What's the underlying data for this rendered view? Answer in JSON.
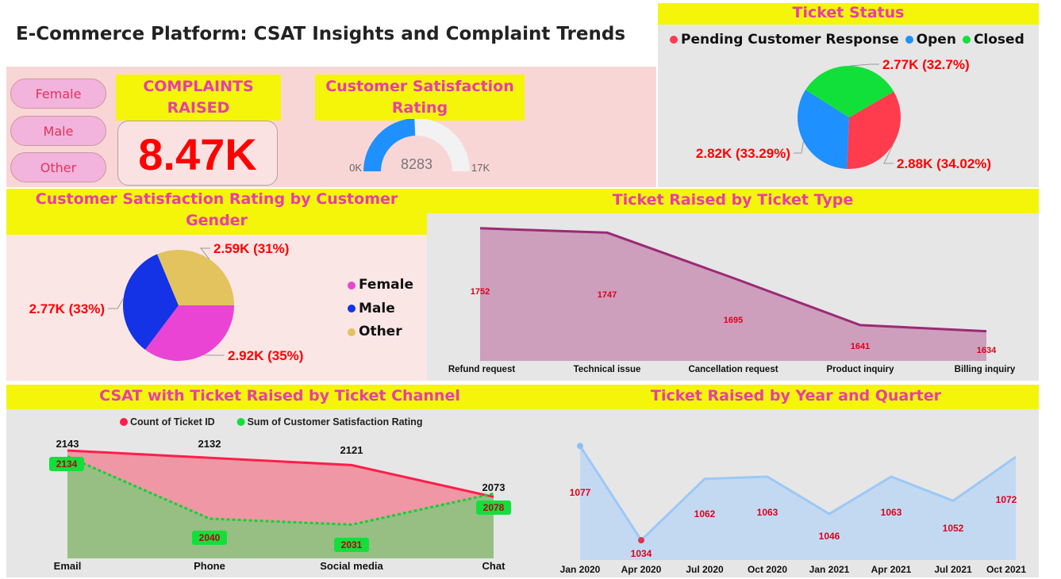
{
  "header": {
    "title": "E-Commerce Platform: CSAT Insights and Complaint Trends"
  },
  "colors": {
    "accent_yellow": "#f5f50a",
    "title_pink": "#e83ea8",
    "value_red": "#ff0000",
    "panel_pink": "#f9d6d6",
    "panel_grey": "#e6e6e6"
  },
  "slicer": {
    "items": [
      "Female",
      "Male",
      "Other"
    ]
  },
  "kpi": {
    "label": "COMPLAINTS RAISED",
    "value": "8.47K"
  },
  "gauge": {
    "title": "Customer Satisfaction Rating",
    "value": 8283,
    "value_label": "8283",
    "min_label": "0K",
    "max_label": "17K"
  },
  "ticket_status": {
    "title": "Ticket Status",
    "legend": [
      {
        "label": "Pending Customer Response",
        "color": "#ff3b4e"
      },
      {
        "label": "Open",
        "color": "#1e90ff"
      },
      {
        "label": "Closed",
        "color": "#12e03a"
      }
    ]
  },
  "gender": {
    "title": "Customer Satisfaction Rating by Customer Gender",
    "legend": [
      {
        "label": "Female",
        "color": "#ea44d4"
      },
      {
        "label": "Male",
        "color": "#1432e6"
      },
      {
        "label": "Other",
        "color": "#e2c35e"
      }
    ]
  },
  "ticket_type": {
    "title": "Ticket Raised by Ticket Type"
  },
  "channel": {
    "title": "CSAT with Ticket Raised by Ticket Channel",
    "legend": [
      {
        "label": "Count of Ticket ID",
        "color": "#ff1e4a"
      },
      {
        "label": "Sum of Customer Satisfaction Rating",
        "color": "#12e03a"
      }
    ]
  },
  "quarter": {
    "title": "Ticket Raised by Year and Quarter"
  },
  "chart_data": [
    {
      "id": "ticket_status",
      "type": "pie",
      "categories": [
        "Pending Customer Response",
        "Open",
        "Closed"
      ],
      "values": [
        2880,
        2820,
        2770
      ],
      "labels": [
        "2.88K (34.02%)",
        "2.82K (33.29%)",
        "2.77K (32.7%)"
      ],
      "colors": [
        "#ff3b4e",
        "#1e90ff",
        "#12e03a"
      ]
    },
    {
      "id": "gender",
      "type": "pie",
      "categories": [
        "Female",
        "Male",
        "Other"
      ],
      "values": [
        2920,
        2770,
        2590
      ],
      "labels": [
        "2.92K (35%)",
        "2.77K (33%)",
        "2.59K (31%)"
      ],
      "colors": [
        "#ea44d4",
        "#1432e6",
        "#e2c35e"
      ]
    },
    {
      "id": "ticket_type",
      "type": "area",
      "categories": [
        "Refund request",
        "Technical issue",
        "Cancellation request",
        "Product inquiry",
        "Billing inquiry"
      ],
      "values": [
        1752,
        1747,
        1695,
        1641,
        1634
      ],
      "ylim": [
        1600,
        1760
      ]
    },
    {
      "id": "channel",
      "type": "area",
      "categories": [
        "Email",
        "Phone",
        "Social media",
        "Chat"
      ],
      "series": [
        {
          "name": "Count of Ticket ID",
          "values": [
            2143,
            2132,
            2121,
            2073
          ]
        },
        {
          "name": "Sum of Customer Satisfaction Rating",
          "values": [
            2134,
            2040,
            2031,
            2078
          ]
        }
      ],
      "ylim": [
        1980,
        2155
      ]
    },
    {
      "id": "quarter",
      "type": "area",
      "categories": [
        "Jan 2020",
        "Apr 2020",
        "Jul 2020",
        "Oct 2020",
        "Jan 2021",
        "Apr 2021",
        "Jul 2021",
        "Oct 2021"
      ],
      "values": [
        1077,
        1034,
        1062,
        1063,
        1046,
        1063,
        1052,
        1072
      ],
      "ylim": [
        1025,
        1080
      ]
    }
  ]
}
